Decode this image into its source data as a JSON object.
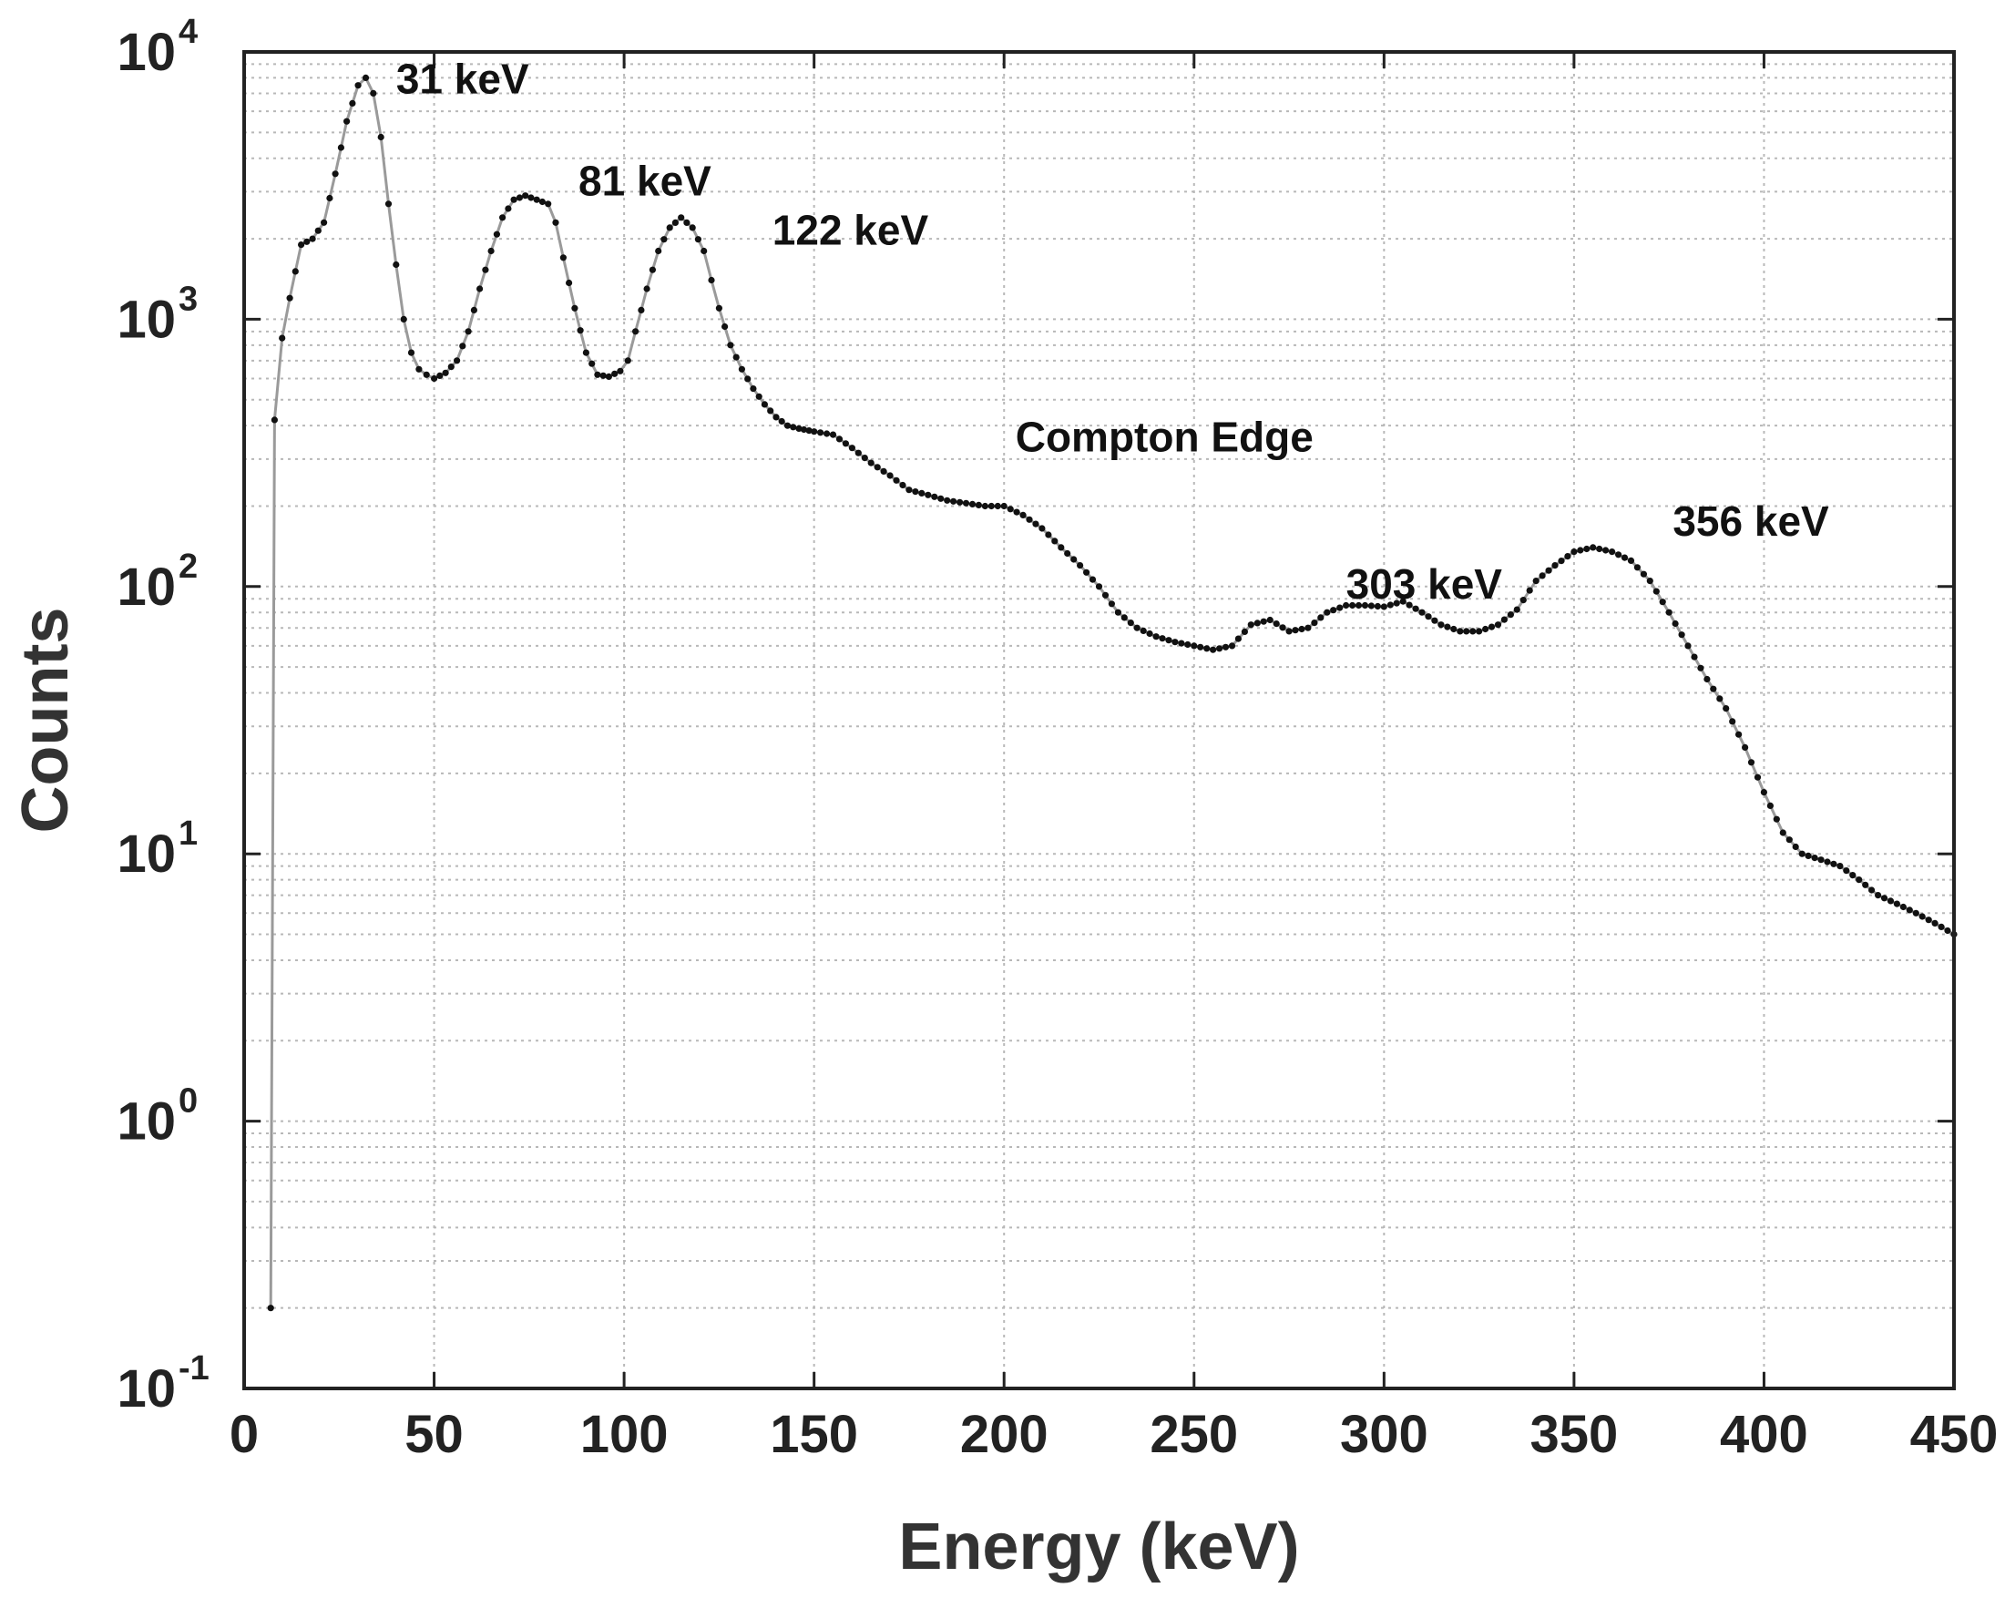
{
  "chart_data": {
    "type": "line",
    "xlabel": "Energy (keV)",
    "ylabel": "Counts",
    "xlim": [
      0,
      450
    ],
    "ylim": [
      0.1,
      10000
    ],
    "yscale": "log",
    "grid": true,
    "x_ticks": [
      {
        "value": 0,
        "label": "0"
      },
      {
        "value": 50,
        "label": "50"
      },
      {
        "value": 100,
        "label": "100"
      },
      {
        "value": 150,
        "label": "150"
      },
      {
        "value": 200,
        "label": "200"
      },
      {
        "value": 250,
        "label": "250"
      },
      {
        "value": 300,
        "label": "300"
      },
      {
        "value": 350,
        "label": "350"
      },
      {
        "value": 400,
        "label": "400"
      },
      {
        "value": 450,
        "label": "450"
      }
    ],
    "y_ticks": [
      {
        "value": 0.1,
        "base": "10",
        "exp": "-1"
      },
      {
        "value": 1,
        "base": "10",
        "exp": "0"
      },
      {
        "value": 10,
        "base": "10",
        "exp": "1"
      },
      {
        "value": 100,
        "base": "10",
        "exp": "2"
      },
      {
        "value": 1000,
        "base": "10",
        "exp": "3"
      },
      {
        "value": 10000,
        "base": "10",
        "exp": "4"
      }
    ],
    "annotations": [
      {
        "text": "31 keV",
        "x": 40,
        "y": 7000
      },
      {
        "text": "81 keV",
        "x": 88,
        "y": 2900
      },
      {
        "text": "122 keV",
        "x": 139,
        "y": 1900
      },
      {
        "text": "Compton Edge",
        "x": 203,
        "y": 320
      },
      {
        "text": "303 keV",
        "x": 290,
        "y": 90
      },
      {
        "text": "356 keV",
        "x": 376,
        "y": 155
      }
    ],
    "series": [
      {
        "name": "spectrum",
        "x": [
          7,
          8,
          10,
          12,
          15,
          18,
          21,
          24,
          27,
          30,
          32,
          34,
          36,
          38,
          40,
          42,
          44,
          46,
          48,
          50,
          53,
          56,
          59,
          62,
          65,
          68,
          71,
          74,
          77,
          80,
          82,
          84,
          87,
          90,
          93,
          96,
          99,
          101,
          103,
          106,
          109,
          112,
          115,
          118,
          121,
          123,
          125,
          128,
          131,
          134,
          137,
          140,
          143,
          146,
          150,
          155,
          160,
          165,
          170,
          175,
          180,
          185,
          190,
          195,
          200,
          205,
          210,
          215,
          220,
          225,
          230,
          235,
          240,
          245,
          250,
          255,
          260,
          265,
          270,
          275,
          280,
          285,
          290,
          295,
          300,
          305,
          310,
          315,
          320,
          325,
          330,
          335,
          340,
          345,
          350,
          355,
          360,
          365,
          370,
          375,
          380,
          385,
          390,
          395,
          400,
          405,
          410,
          415,
          420,
          425,
          430,
          435,
          440,
          445,
          450
        ],
        "y": [
          0.2,
          420,
          850,
          1200,
          1900,
          2000,
          2300,
          3500,
          5500,
          7500,
          8000,
          7000,
          4800,
          2700,
          1600,
          1000,
          750,
          650,
          620,
          600,
          630,
          700,
          900,
          1300,
          1800,
          2400,
          2800,
          2900,
          2800,
          2700,
          2300,
          1700,
          1100,
          750,
          620,
          610,
          640,
          700,
          900,
          1300,
          1800,
          2200,
          2400,
          2200,
          1800,
          1400,
          1100,
          800,
          650,
          550,
          480,
          430,
          400,
          390,
          380,
          370,
          330,
          290,
          260,
          230,
          220,
          210,
          205,
          200,
          200,
          185,
          165,
          140,
          120,
          100,
          80,
          70,
          65,
          62,
          60,
          58,
          60,
          72,
          75,
          68,
          70,
          80,
          85,
          85,
          84,
          88,
          80,
          72,
          68,
          68,
          72,
          82,
          105,
          120,
          135,
          140,
          135,
          125,
          105,
          80,
          60,
          45,
          35,
          25,
          17,
          12,
          10,
          9.5,
          9,
          8,
          7,
          6.5,
          6,
          5.5,
          5
        ]
      }
    ]
  }
}
